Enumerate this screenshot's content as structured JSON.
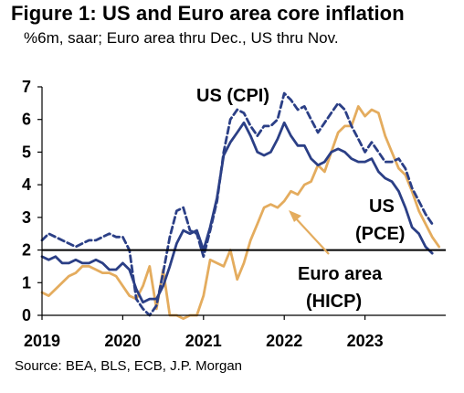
{
  "header": {
    "title": "Figure 1: US and Euro area core inflation",
    "subtitle": "%6m, saar; Euro area thru Dec., US thru Nov."
  },
  "footer": {
    "source": "Source: BEA, BLS, ECB, J.P. Morgan"
  },
  "annotations": {
    "cpi": "US (CPI)",
    "pce_line1": "US",
    "pce_line2": "(PCE)",
    "hicp_line1": "Euro area",
    "hicp_line2": "(HICP)"
  },
  "colors": {
    "us_cpi": "#2b3f86",
    "us_pce": "#2b3f86",
    "euro_hicp": "#e4ac5e",
    "reference": "#000000"
  },
  "chart_data": {
    "type": "line",
    "title": "Figure 1: US and Euro area core inflation",
    "subtitle": "%6m, saar; Euro area thru Dec., US thru Nov.",
    "xlabel": "",
    "ylabel": "",
    "xlim": [
      2019.0,
      2024.0
    ],
    "ylim": [
      0,
      7
    ],
    "x_ticks": [
      "2019",
      "2020",
      "2021",
      "2022",
      "2023"
    ],
    "y_ticks": [
      "0",
      "1",
      "2",
      "3",
      "4",
      "5",
      "6",
      "7"
    ],
    "reference_line": 2,
    "series": [
      {
        "name": "US (CPI)",
        "style": "dashed",
        "x": [
          2019.0,
          2019.083,
          2019.167,
          2019.25,
          2019.333,
          2019.417,
          2019.5,
          2019.583,
          2019.667,
          2019.75,
          2019.833,
          2019.917,
          2020.0,
          2020.083,
          2020.167,
          2020.25,
          2020.333,
          2020.417,
          2020.5,
          2020.583,
          2020.667,
          2020.75,
          2020.833,
          2020.917,
          2021.0,
          2021.083,
          2021.167,
          2021.25,
          2021.333,
          2021.417,
          2021.5,
          2021.583,
          2021.667,
          2021.75,
          2021.833,
          2021.917,
          2022.0,
          2022.083,
          2022.167,
          2022.25,
          2022.333,
          2022.417,
          2022.5,
          2022.583,
          2022.667,
          2022.75,
          2022.833,
          2022.917,
          2023.0,
          2023.083,
          2023.167,
          2023.25,
          2023.333,
          2023.417,
          2023.5,
          2023.583,
          2023.667,
          2023.75,
          2023.833
        ],
        "values": [
          2.3,
          2.5,
          2.4,
          2.3,
          2.2,
          2.1,
          2.2,
          2.3,
          2.3,
          2.4,
          2.5,
          2.4,
          2.4,
          2.0,
          0.5,
          0.2,
          0.0,
          0.3,
          1.3,
          2.4,
          3.2,
          3.3,
          2.6,
          2.5,
          1.8,
          2.6,
          3.5,
          5.0,
          6.0,
          6.3,
          6.2,
          5.8,
          5.5,
          5.8,
          5.8,
          6.0,
          6.8,
          6.6,
          6.3,
          6.4,
          6.0,
          5.6,
          5.9,
          6.2,
          6.5,
          6.3,
          5.8,
          5.4,
          5.0,
          5.3,
          5.0,
          4.7,
          4.7,
          4.8,
          4.5,
          3.9,
          3.5,
          3.1,
          2.8
        ]
      },
      {
        "name": "US (PCE)",
        "style": "solid",
        "x": [
          2019.0,
          2019.083,
          2019.167,
          2019.25,
          2019.333,
          2019.417,
          2019.5,
          2019.583,
          2019.667,
          2019.75,
          2019.833,
          2019.917,
          2020.0,
          2020.083,
          2020.167,
          2020.25,
          2020.333,
          2020.417,
          2020.5,
          2020.583,
          2020.667,
          2020.75,
          2020.833,
          2020.917,
          2021.0,
          2021.083,
          2021.167,
          2021.25,
          2021.333,
          2021.417,
          2021.5,
          2021.583,
          2021.667,
          2021.75,
          2021.833,
          2021.917,
          2022.0,
          2022.083,
          2022.167,
          2022.25,
          2022.333,
          2022.417,
          2022.5,
          2022.583,
          2022.667,
          2022.75,
          2022.833,
          2022.917,
          2023.0,
          2023.083,
          2023.167,
          2023.25,
          2023.333,
          2023.417,
          2023.5,
          2023.583,
          2023.667,
          2023.75,
          2023.833
        ],
        "values": [
          1.8,
          1.7,
          1.8,
          1.6,
          1.6,
          1.7,
          1.6,
          1.6,
          1.7,
          1.6,
          1.4,
          1.4,
          1.6,
          1.4,
          0.8,
          0.4,
          0.5,
          0.5,
          0.9,
          1.5,
          2.2,
          2.6,
          2.5,
          2.6,
          2.0,
          2.7,
          3.6,
          4.9,
          5.3,
          5.6,
          5.9,
          5.5,
          5.0,
          4.9,
          5.0,
          5.4,
          5.9,
          5.5,
          5.2,
          5.2,
          4.8,
          4.6,
          4.7,
          5.0,
          5.1,
          5.0,
          4.8,
          4.7,
          4.7,
          4.8,
          4.4,
          4.2,
          4.1,
          3.8,
          3.3,
          2.7,
          2.5,
          2.1,
          1.9
        ]
      },
      {
        "name": "Euro area (HICP)",
        "style": "solid",
        "x": [
          2019.0,
          2019.083,
          2019.167,
          2019.25,
          2019.333,
          2019.417,
          2019.5,
          2019.583,
          2019.667,
          2019.75,
          2019.833,
          2019.917,
          2020.0,
          2020.083,
          2020.167,
          2020.25,
          2020.333,
          2020.417,
          2020.5,
          2020.583,
          2020.667,
          2020.75,
          2020.833,
          2020.917,
          2021.0,
          2021.083,
          2021.167,
          2021.25,
          2021.333,
          2021.417,
          2021.5,
          2021.583,
          2021.667,
          2021.75,
          2021.833,
          2021.917,
          2022.0,
          2022.083,
          2022.167,
          2022.25,
          2022.333,
          2022.417,
          2022.5,
          2022.583,
          2022.667,
          2022.75,
          2022.833,
          2022.917,
          2023.0,
          2023.083,
          2023.167,
          2023.25,
          2023.333,
          2023.417,
          2023.5,
          2023.583,
          2023.667,
          2023.75,
          2023.833,
          2023.917
        ],
        "values": [
          0.7,
          0.6,
          0.8,
          1.0,
          1.2,
          1.3,
          1.5,
          1.5,
          1.4,
          1.3,
          1.3,
          1.2,
          0.9,
          0.6,
          0.5,
          0.9,
          1.5,
          0.2,
          1.4,
          0.0,
          0.0,
          -0.1,
          0.0,
          0.0,
          0.6,
          1.7,
          1.6,
          1.5,
          2.0,
          1.1,
          1.6,
          2.3,
          2.8,
          3.3,
          3.4,
          3.3,
          3.5,
          3.8,
          3.7,
          4.0,
          4.1,
          4.6,
          4.4,
          5.0,
          5.6,
          5.8,
          5.8,
          6.4,
          6.1,
          6.3,
          6.2,
          5.5,
          5.0,
          4.5,
          4.3,
          3.8,
          3.2,
          2.8,
          2.4,
          2.1
        ]
      }
    ]
  }
}
